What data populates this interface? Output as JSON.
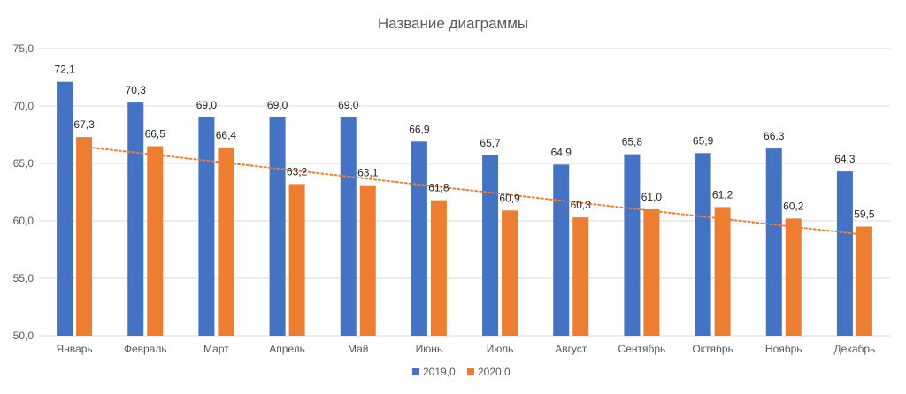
{
  "chart_data": {
    "type": "bar",
    "title": "Название диаграммы",
    "categories": [
      "Январь",
      "Февраль",
      "Март",
      "Апрель",
      "Май",
      "Июнь",
      "Июль",
      "Август",
      "Сентябрь",
      "Октябрь",
      "Ноябрь",
      "Декабрь"
    ],
    "series": [
      {
        "name": "2019,0",
        "color": "#4472C4",
        "values": [
          72.1,
          70.3,
          69.0,
          69.0,
          69.0,
          66.9,
          65.7,
          64.9,
          65.8,
          65.9,
          66.3,
          64.3
        ],
        "labels": [
          "72,1",
          "70,3",
          "69,0",
          "69,0",
          "69,0",
          "66,9",
          "65,7",
          "64,9",
          "65,8",
          "65,9",
          "66,3",
          "64,3"
        ]
      },
      {
        "name": "2020,0",
        "color": "#ED7D31",
        "values": [
          67.3,
          66.5,
          66.4,
          63.2,
          63.1,
          61.8,
          60.9,
          60.3,
          61.0,
          61.2,
          60.2,
          59.5
        ],
        "labels": [
          "67,3",
          "66,5",
          "66,4",
          "63,2",
          "63,1",
          "61,8",
          "60,9",
          "60,3",
          "61,0",
          "61,2",
          "60,2",
          "59,5"
        ]
      }
    ],
    "trendline": {
      "series": "2020,0",
      "type": "linear",
      "style": "dotted",
      "color": "#ED7D31"
    },
    "ylim": [
      50,
      75
    ],
    "yticks": [
      50,
      55,
      60,
      65,
      70,
      75
    ],
    "ytick_labels": [
      "50,0",
      "55,0",
      "60,0",
      "65,0",
      "70,0",
      "75,0"
    ],
    "xlabel": "",
    "ylabel": "",
    "grid": true,
    "legend": "bottom"
  }
}
